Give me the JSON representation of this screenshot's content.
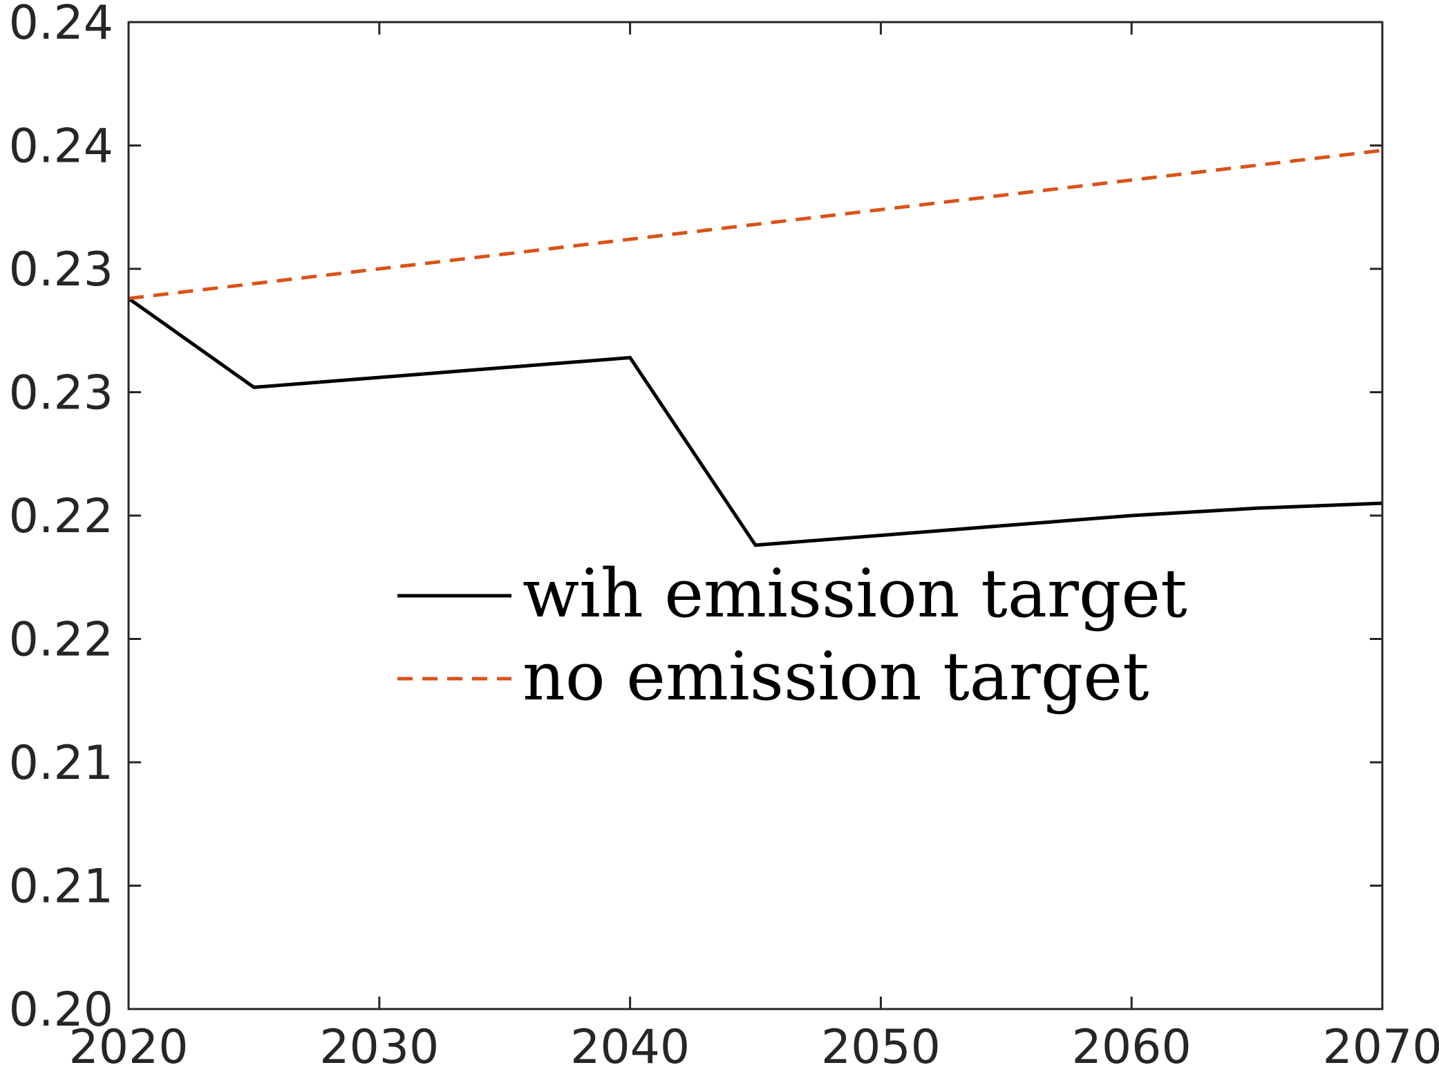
{
  "chart_data": {
    "type": "line",
    "title": "",
    "xlabel": "",
    "ylabel": "",
    "xlim": [
      2020,
      2070
    ],
    "ylim": [
      0.2,
      0.24
    ],
    "x_ticks": [
      2020,
      2030,
      2040,
      2050,
      2060,
      2070
    ],
    "x_tick_labels": [
      "2020",
      "2030",
      "2040",
      "2050",
      "2060",
      "2070"
    ],
    "y_ticks": [
      0.2,
      0.205,
      0.21,
      0.215,
      0.22,
      0.225,
      0.23,
      0.235,
      0.24
    ],
    "y_tick_labels": [
      "0.20",
      "0.21",
      "0.21",
      "0.22",
      "0.22",
      "0.23",
      "0.23",
      "0.24",
      "0.24"
    ],
    "grid": false,
    "legend_position": "center",
    "series": [
      {
        "name": "wih emission target",
        "color": "#000000",
        "line_style": "solid",
        "x": [
          2020,
          2025,
          2030,
          2035,
          2040,
          2045,
          2050,
          2055,
          2060,
          2065,
          2070
        ],
        "y": [
          0.2288,
          0.2252,
          0.2256,
          0.226,
          0.2264,
          0.2188,
          0.2192,
          0.2196,
          0.22,
          0.2203,
          0.2205
        ]
      },
      {
        "name": "no emission target",
        "color": "#D95319",
        "line_style": "dashed",
        "x": [
          2020,
          2025,
          2030,
          2035,
          2040,
          2045,
          2050,
          2055,
          2060,
          2065,
          2070
        ],
        "y": [
          0.2288,
          0.2294,
          0.23,
          0.2306,
          0.2312,
          0.2318,
          0.2324,
          0.233,
          0.2336,
          0.2342,
          0.2348
        ]
      }
    ]
  }
}
